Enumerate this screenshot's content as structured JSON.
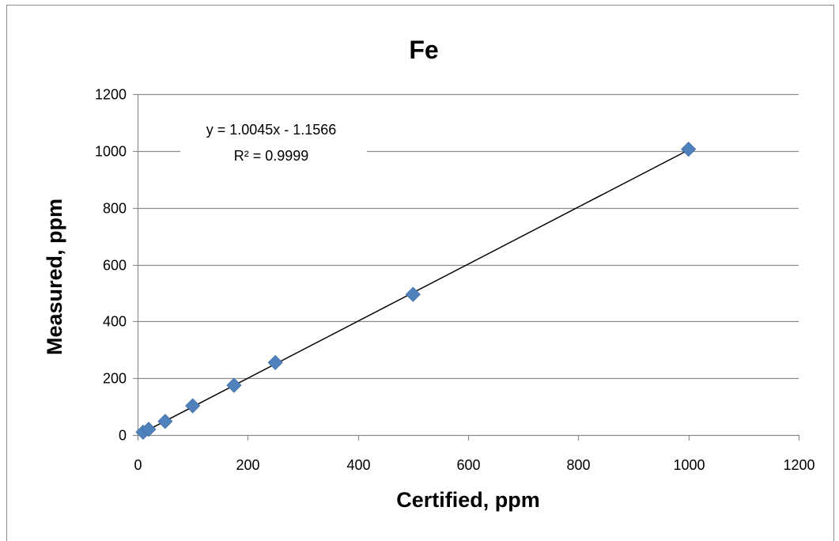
{
  "chart_data": {
    "type": "scatter",
    "title": "Fe",
    "xlabel": "Certified, ppm",
    "ylabel": "Measured, ppm",
    "xlim": [
      0,
      1200
    ],
    "ylim": [
      0,
      1200
    ],
    "x_ticks": [
      "0",
      "200",
      "400",
      "600",
      "800",
      "1000",
      "1200"
    ],
    "y_ticks": [
      "0",
      "200",
      "400",
      "600",
      "800",
      "1000",
      "1200"
    ],
    "grid": "horizontal",
    "legend": "none",
    "series": [
      {
        "marker": "diamond",
        "color": "#4F81BD",
        "points": [
          {
            "x": 10,
            "y": 10
          },
          {
            "x": 20,
            "y": 20
          },
          {
            "x": 50,
            "y": 48
          },
          {
            "x": 100,
            "y": 103
          },
          {
            "x": 175,
            "y": 175
          },
          {
            "x": 250,
            "y": 255
          },
          {
            "x": 500,
            "y": 495
          },
          {
            "x": 1000,
            "y": 1006
          }
        ]
      }
    ],
    "trendline": {
      "type": "linear",
      "slope": 1.0045,
      "intercept": -1.1566,
      "x_range": [
        10,
        1000
      ],
      "color": "#000000",
      "equation": "y = 1.0045x - 1.1566",
      "r_squared": "R² = 0.9999"
    }
  }
}
